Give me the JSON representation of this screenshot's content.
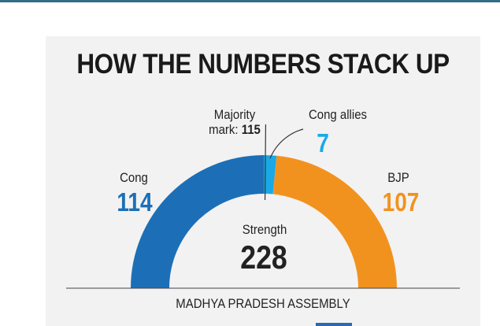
{
  "colors": {
    "cong": "#1c6fb7",
    "cong_allies": "#1aa9e6",
    "bjp": "#f2921e",
    "text": "#222222"
  },
  "title": "HOW THE NUMBERS STACK UP",
  "footer": "MADHYA PRADESH ASSEMBLY",
  "majority": {
    "label": "Majority",
    "label2": "mark:",
    "value": "115"
  },
  "allies": {
    "label": "Cong allies",
    "value": "7"
  },
  "cong": {
    "label": "Cong",
    "value": "114"
  },
  "bjp": {
    "label": "BJP",
    "value": "107"
  },
  "strength": {
    "label": "Strength",
    "value": "228"
  },
  "chart_data": {
    "type": "pie",
    "subtype": "semicircle-gauge",
    "title": "HOW THE NUMBERS STACK UP",
    "total": 228,
    "majority_mark": 115,
    "segments": [
      {
        "name": "Cong",
        "value": 114
      },
      {
        "name": "Cong allies",
        "value": 7
      },
      {
        "name": "BJP",
        "value": 107
      }
    ]
  }
}
